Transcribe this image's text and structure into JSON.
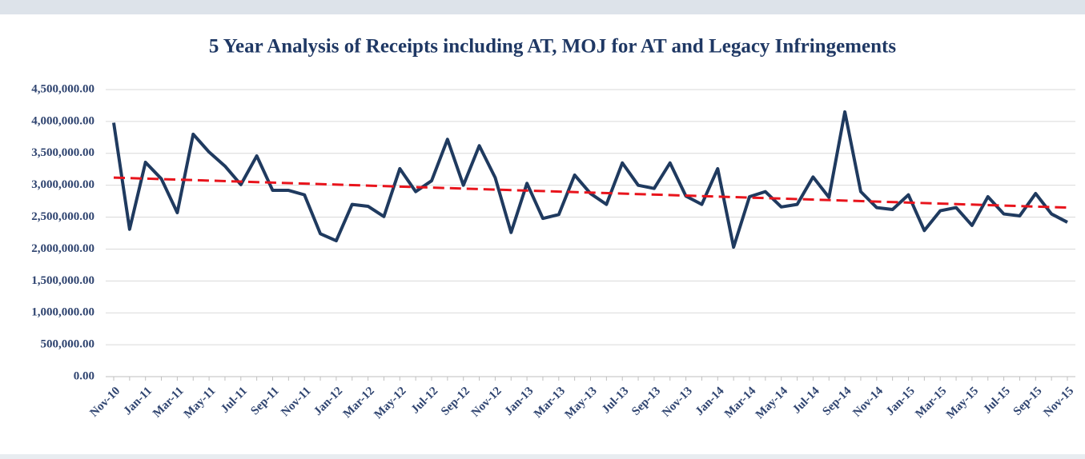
{
  "chart_data": {
    "type": "line",
    "title": "5 Year Analysis of Receipts including AT, MOJ for AT and Legacy Infringements",
    "categories": [
      "Nov-10",
      null,
      "Jan-11",
      null,
      "Mar-11",
      null,
      "May-11",
      null,
      "Jul-11",
      null,
      "Sep-11",
      null,
      "Nov-11",
      null,
      "Jan-12",
      null,
      "Mar-12",
      null,
      "May-12",
      null,
      "Jul-12",
      null,
      "Sep-12",
      null,
      "Nov-12",
      null,
      "Jan-13",
      null,
      "Mar-13",
      null,
      "May-13",
      null,
      "Jul-13",
      null,
      "Sep-13",
      null,
      "Nov-13",
      null,
      "Jan-14",
      null,
      "Mar-14",
      null,
      "May-14",
      null,
      "Jul-14",
      null,
      "Sep-14",
      null,
      "Nov-14",
      null,
      "Jan-15",
      null,
      "Mar-15",
      null,
      "May-15",
      null,
      "Jul-15",
      null,
      "Sep-15",
      null,
      "Nov-15"
    ],
    "series": [
      {
        "color": "#1f3a5f",
        "values": [
          3980000,
          2310000,
          3360000,
          3100000,
          2570000,
          3800000,
          3520000,
          3300000,
          3010000,
          3460000,
          2920000,
          2920000,
          2850000,
          2240000,
          2130000,
          2700000,
          2670000,
          2510000,
          3260000,
          2900000,
          3070000,
          3720000,
          3000000,
          3620000,
          3120000,
          2260000,
          3030000,
          2480000,
          2540000,
          3160000,
          2870000,
          2700000,
          3350000,
          3000000,
          2950000,
          3350000,
          2830000,
          2700000,
          3260000,
          2030000,
          2820000,
          2900000,
          2660000,
          2700000,
          3130000,
          2810000,
          4150000,
          2900000,
          2650000,
          2620000,
          2850000,
          2290000,
          2600000,
          2650000,
          2370000,
          2820000,
          2550000,
          2520000,
          2870000,
          2550000,
          2420000
        ]
      }
    ],
    "trendline": {
      "start": 3120000,
      "end": 2650000,
      "color": "#e8141c"
    },
    "ylim": [
      0,
      4500000
    ],
    "yticks": [
      {
        "value": 0,
        "label": "0.00"
      },
      {
        "value": 500000,
        "label": "500,000.00"
      },
      {
        "value": 1000000,
        "label": "1,000,000.00"
      },
      {
        "value": 1500000,
        "label": "1,500,000.00"
      },
      {
        "value": 2000000,
        "label": "2,000,000.00"
      },
      {
        "value": 2500000,
        "label": "2,500,000.00"
      },
      {
        "value": 3000000,
        "label": "3,000,000.00"
      },
      {
        "value": 3500000,
        "label": "3,500,000.00"
      },
      {
        "value": 4000000,
        "label": "4,000,000.00"
      },
      {
        "value": 4500000,
        "label": "4,500,000.00"
      }
    ],
    "grid": true
  }
}
